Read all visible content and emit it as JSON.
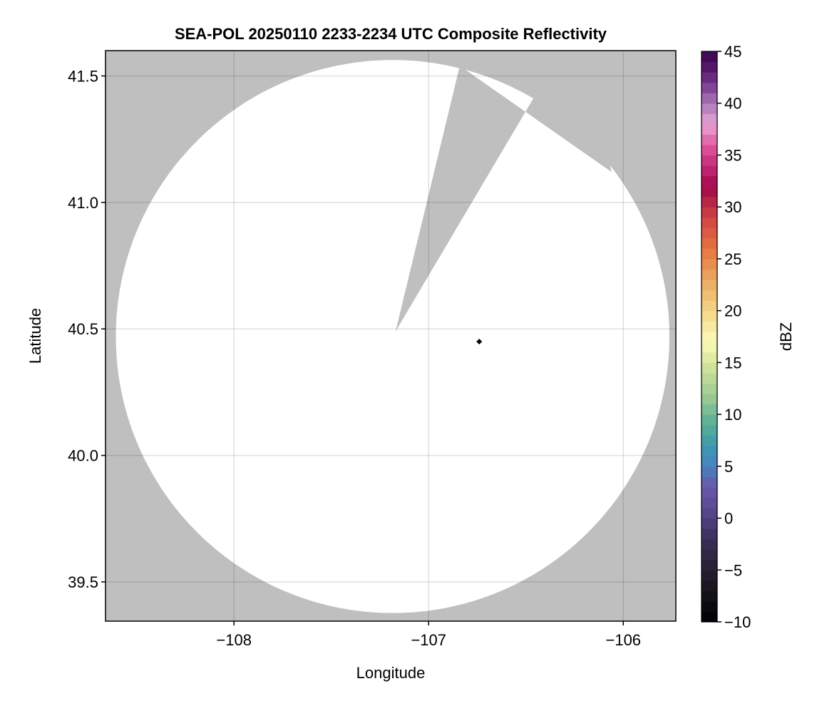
{
  "chart_data": {
    "type": "heatmap",
    "title": "SEA-POL 20250110 2233-2234 UTC Composite Reflectivity",
    "xlabel": "Longitude",
    "ylabel": "Latitude",
    "xlim": [
      -108.66,
      -105.73
    ],
    "ylim": [
      39.345,
      41.6
    ],
    "xticks": [
      -108,
      -107,
      -106
    ],
    "xtick_labels": [
      "−108",
      "−107",
      "−106"
    ],
    "yticks": [
      39.5,
      40.0,
      40.5,
      41.0,
      41.5
    ],
    "ytick_labels": [
      "39.5",
      "40.0",
      "40.5",
      "41.0",
      "41.5"
    ],
    "grid": true,
    "background_color": "#bfbfbf",
    "no_echo_color": "#ffffff",
    "coverage": {
      "center": [
        -107.185,
        40.47
      ],
      "radius_lon_deg": 1.422,
      "radius_lat_deg": 1.093,
      "blocked_sector": [
        [
          -107.17,
          40.49
        ],
        [
          -106.84,
          41.54
        ],
        [
          -106.06,
          41.12
        ]
      ]
    },
    "marker": {
      "lon": -106.74,
      "lat": 40.45,
      "shape": "diamond",
      "color": "#000000"
    },
    "colorbar": {
      "label": "dBZ",
      "range": [
        -10,
        45
      ],
      "step": 1,
      "ticks": [
        -10,
        -5,
        0,
        5,
        10,
        15,
        20,
        25,
        30,
        35,
        40,
        45
      ],
      "tick_labels": [
        "−10",
        "−5",
        "0",
        "5",
        "10",
        "15",
        "20",
        "25",
        "30",
        "35",
        "40",
        "45"
      ],
      "color_stops": [
        [
          -10,
          "#000000"
        ],
        [
          -6,
          "#1e1a26"
        ],
        [
          -2,
          "#3a3058"
        ],
        [
          1,
          "#5a4a94"
        ],
        [
          3,
          "#6a58ac"
        ],
        [
          5,
          "#4682c0"
        ],
        [
          7,
          "#3e9aae"
        ],
        [
          9,
          "#58ae98"
        ],
        [
          12,
          "#a2cc94"
        ],
        [
          15,
          "#d8e69c"
        ],
        [
          17,
          "#fbfbb8"
        ],
        [
          20,
          "#f2d688"
        ],
        [
          23,
          "#eca860"
        ],
        [
          26,
          "#e67442"
        ],
        [
          29,
          "#d04244"
        ],
        [
          31,
          "#b01c48"
        ],
        [
          32,
          "#a2084a"
        ],
        [
          34,
          "#c42a78"
        ],
        [
          36,
          "#e05aa0"
        ],
        [
          38,
          "#e8a4d4"
        ],
        [
          40,
          "#a878b8"
        ],
        [
          42,
          "#76348a"
        ],
        [
          44,
          "#4a0e5c"
        ],
        [
          45,
          "#3c0850"
        ]
      ]
    }
  }
}
